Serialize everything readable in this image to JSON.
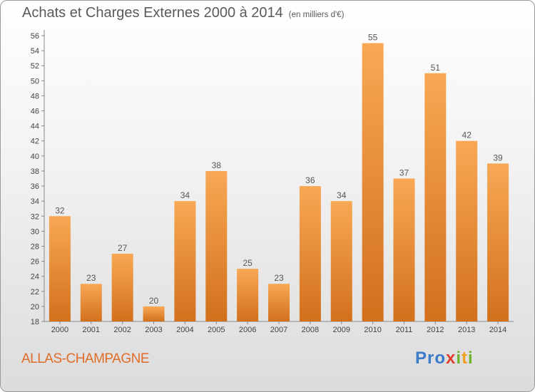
{
  "title": "Achats et Charges Externes 2000 à 2014",
  "subtitle": "(en milliers d'€)",
  "commune": "ALLAS-CHAMPAGNE",
  "logo_text": "Proxiti",
  "colors": {
    "bar_light": "#f8a855",
    "bar_dark": "#d2701c",
    "commune": "#e06c2a",
    "text": "#5a5a5a"
  },
  "chart_data": {
    "type": "bar",
    "categories": [
      "2000",
      "2001",
      "2002",
      "2003",
      "2004",
      "2005",
      "2006",
      "2007",
      "2008",
      "2009",
      "2010",
      "2011",
      "2012",
      "2013",
      "2014"
    ],
    "values": [
      32,
      23,
      27,
      20,
      34,
      38,
      25,
      23,
      36,
      34,
      55,
      37,
      51,
      42,
      39
    ],
    "ylim": [
      18,
      56
    ],
    "yticks": [
      18,
      20,
      22,
      24,
      26,
      28,
      30,
      32,
      34,
      36,
      38,
      40,
      42,
      44,
      46,
      48,
      50,
      52,
      54,
      56
    ],
    "grid": false,
    "data_labels": true
  }
}
